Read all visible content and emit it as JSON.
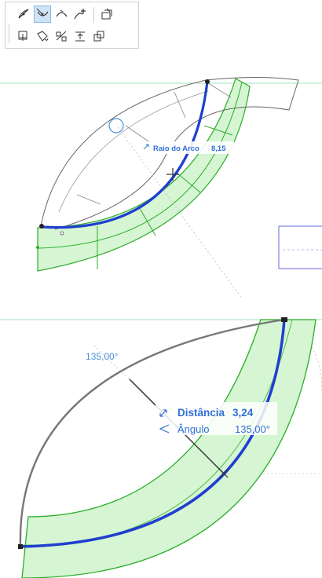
{
  "toolbar": {
    "tools_row1": [
      {
        "icon": "arc-adjust-icon",
        "active": false
      },
      {
        "icon": "arc-radius-icon",
        "active": true
      },
      {
        "icon": "arc-curve-icon",
        "active": false
      },
      {
        "icon": "add-node-icon",
        "active": false
      },
      {
        "icon": "offset-shape-icon",
        "active": false
      }
    ],
    "tools_row2": [
      {
        "icon": "move-icon"
      },
      {
        "icon": "rotate-icon"
      },
      {
        "icon": "mirror-icon"
      },
      {
        "icon": "elevate-icon"
      },
      {
        "icon": "multiply-icon"
      }
    ]
  },
  "view1": {
    "tracker": {
      "icon": "radius-icon",
      "label": "Raio do Arco",
      "value": "8,15"
    }
  },
  "view2": {
    "angle_annotation": "135,00°",
    "tracker": {
      "distance_label": "Distância",
      "distance_value": "3,24",
      "angle_label": "Ângulo",
      "angle_value": "135,00°"
    }
  },
  "colors": {
    "accent_blue": "#1f3fcf",
    "green_fill": "#d6f5d3",
    "green_line": "#2aae2a",
    "guide_green": "#9fe0b8",
    "label_blue": "#4a8fd9"
  }
}
